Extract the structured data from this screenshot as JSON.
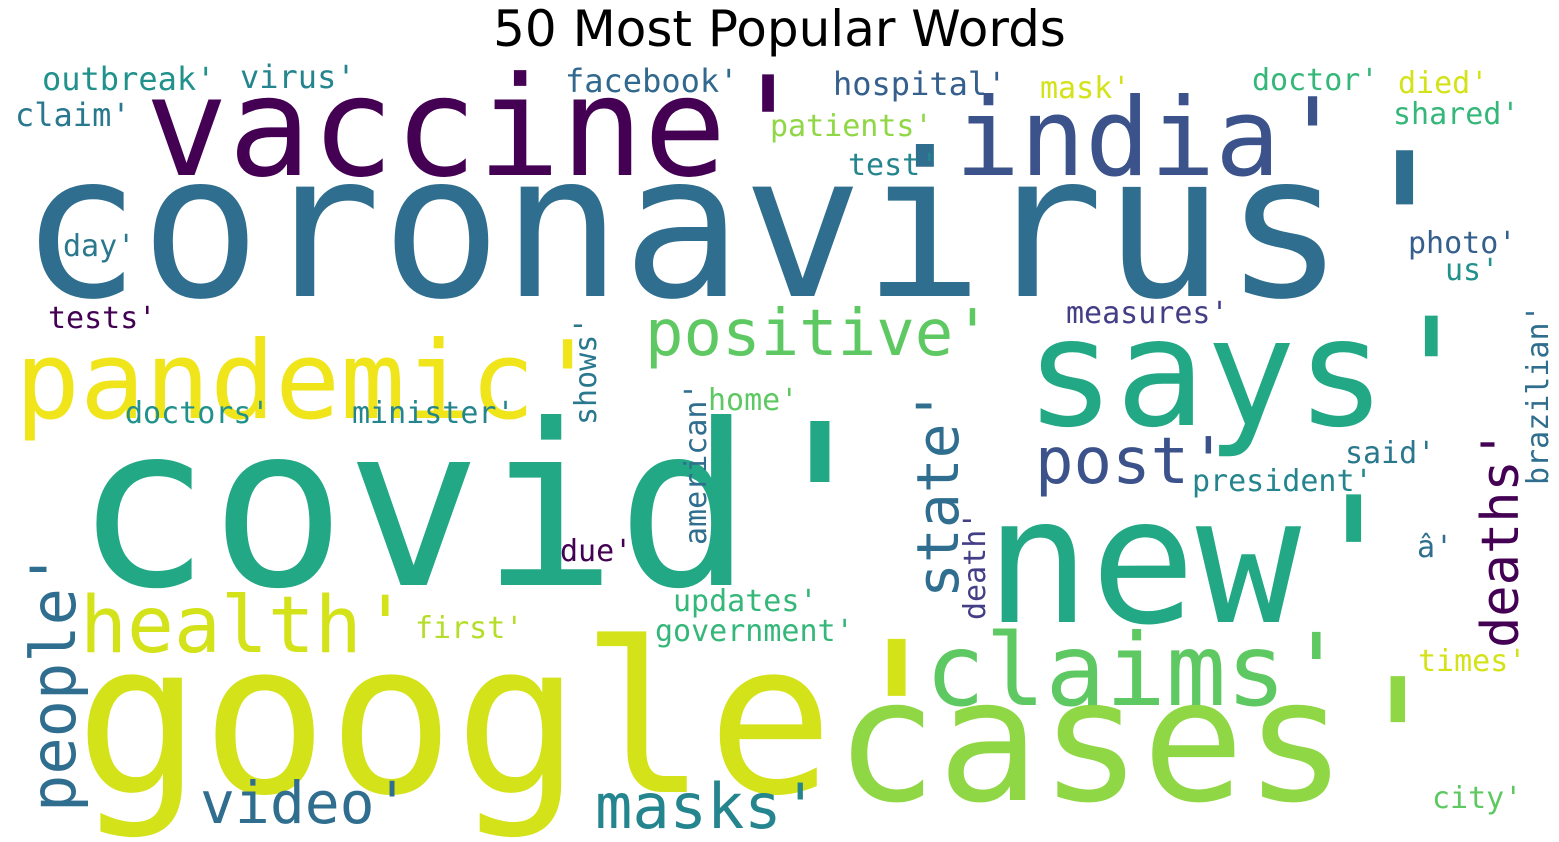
{
  "title": "50 Most Popular Words",
  "words": [
    {
      "text": "coronavirus'",
      "color": "#2f6e8e"
    },
    {
      "text": "covid'",
      "color": "#22a884"
    },
    {
      "text": "google'",
      "color": "#d4e21a"
    },
    {
      "text": "new'",
      "color": "#22a884"
    },
    {
      "text": "cases'",
      "color": "#8fd744"
    },
    {
      "text": "vaccine'",
      "color": "#440154"
    },
    {
      "text": "says'",
      "color": "#22a884"
    },
    {
      "text": "india'",
      "color": "#3b528b"
    },
    {
      "text": "pandemic'",
      "color": "#f0e51b"
    },
    {
      "text": "claims'",
      "color": "#5ec962"
    },
    {
      "text": "positive'",
      "color": "#5ec962"
    },
    {
      "text": "health'",
      "color": "#d4e21a"
    },
    {
      "text": "post'",
      "color": "#3b528b"
    },
    {
      "text": "masks'",
      "color": "#25858e"
    },
    {
      "text": "video'",
      "color": "#2f6e8e"
    },
    {
      "text": "people'",
      "color": "#2f6e8e"
    },
    {
      "text": "state'",
      "color": "#2f6e8e"
    },
    {
      "text": "deaths'",
      "color": "#440154"
    },
    {
      "text": "facebook'",
      "color": "#31688e"
    },
    {
      "text": "hospital'",
      "color": "#355f8d"
    },
    {
      "text": "outbreak'",
      "color": "#21918c"
    },
    {
      "text": "virus'",
      "color": "#25858e"
    },
    {
      "text": "claim'",
      "color": "#2a788e"
    },
    {
      "text": "mask'",
      "color": "#d4e21a"
    },
    {
      "text": "doctor'",
      "color": "#35b779"
    },
    {
      "text": "died'",
      "color": "#d4e21a"
    },
    {
      "text": "shared'",
      "color": "#35b779"
    },
    {
      "text": "patients'",
      "color": "#8fd744"
    },
    {
      "text": "test'",
      "color": "#25858e"
    },
    {
      "text": "day'",
      "color": "#2a788e"
    },
    {
      "text": "photo'",
      "color": "#355f8d"
    },
    {
      "text": "us'",
      "color": "#21918c"
    },
    {
      "text": "tests'",
      "color": "#440154"
    },
    {
      "text": "measures'",
      "color": "#433e85"
    },
    {
      "text": "brazilian'",
      "color": "#2f6e8e"
    },
    {
      "text": "doctors'",
      "color": "#21918c"
    },
    {
      "text": "minister'",
      "color": "#25858e"
    },
    {
      "text": "shows'",
      "color": "#2a788e"
    },
    {
      "text": "home'",
      "color": "#5ec962"
    },
    {
      "text": "said'",
      "color": "#2a788e"
    },
    {
      "text": "president'",
      "color": "#25858e"
    },
    {
      "text": "american'",
      "color": "#2f6e8e"
    },
    {
      "text": "death'",
      "color": "#433e85"
    },
    {
      "text": "â'",
      "color": "#2f6e8e"
    },
    {
      "text": "due'",
      "color": "#440154"
    },
    {
      "text": "updates'",
      "color": "#35b779"
    },
    {
      "text": "government'",
      "color": "#35b779"
    },
    {
      "text": "first'",
      "color": "#b5de2b"
    },
    {
      "text": "times'",
      "color": "#d4e21a"
    },
    {
      "text": "city'",
      "color": "#5ec962"
    }
  ]
}
